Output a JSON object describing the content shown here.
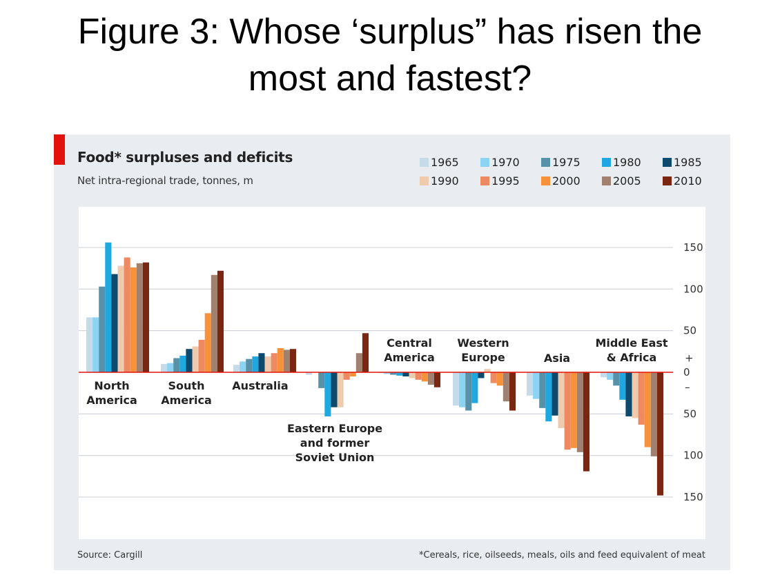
{
  "slide": {
    "title_line1": "Figure 3: Whose ‘surplus” has risen the",
    "title_line2": "most and fastest?"
  },
  "chart_data": {
    "type": "bar",
    "title": "Food* surpluses and deficits",
    "subtitle": "Net intra-regional trade, tonnes, m",
    "source": "Source: Cargill",
    "footnote": "*Cereals, rice, oilseeds, meals, oils and feed equivalent of meat",
    "ylim": [
      -165,
      170
    ],
    "yticks": [
      {
        "v": 150,
        "label": "150"
      },
      {
        "v": 100,
        "label": "100"
      },
      {
        "v": 50,
        "label": "50"
      },
      {
        "v": 0,
        "label": "0"
      },
      {
        "v": -50,
        "label": "50"
      },
      {
        "v": -100,
        "label": "100"
      },
      {
        "v": -150,
        "label": "150"
      }
    ],
    "sign_labels": {
      "plus": "+",
      "minus": "–"
    },
    "series_names": [
      "1965",
      "1970",
      "1975",
      "1980",
      "1985",
      "1990",
      "1995",
      "2000",
      "2005",
      "2010"
    ],
    "series_colors": [
      "#c6dbea",
      "#8cd3f4",
      "#5892a9",
      "#1fa8e0",
      "#0c4a6e",
      "#efcbae",
      "#ee8a62",
      "#f7923a",
      "#a0806f",
      "#7b2611"
    ],
    "categories": [
      {
        "name": "North America",
        "lines": [
          "North",
          "America"
        ],
        "values": [
          66,
          66,
          103,
          156,
          118,
          128,
          138,
          126,
          131,
          132
        ]
      },
      {
        "name": "South America",
        "lines": [
          "South",
          "America"
        ],
        "values": [
          10,
          11,
          17,
          20,
          28,
          31,
          39,
          71,
          117,
          122
        ]
      },
      {
        "name": "Australia",
        "lines": [
          "Australia"
        ],
        "values": [
          9,
          13,
          16,
          19,
          23,
          19,
          23,
          29,
          27,
          28
        ]
      },
      {
        "name": "Eastern Europe and former Soviet Union",
        "lines": [
          "Eastern Europe",
          "and former",
          "Soviet Union"
        ],
        "values": [
          -3,
          0,
          -19,
          -53,
          -42,
          -42,
          -9,
          -5,
          23,
          47
        ]
      },
      {
        "name": "Central America",
        "lines": [
          "Central",
          "America"
        ],
        "values": [
          -1,
          -2,
          -3,
          -4,
          -5,
          -7,
          -9,
          -11,
          -15,
          -18
        ]
      },
      {
        "name": "Western Europe",
        "lines": [
          "Western",
          "Europe"
        ],
        "values": [
          -40,
          -42,
          -46,
          -37,
          -7,
          4,
          -13,
          -16,
          -35,
          -46
        ]
      },
      {
        "name": "Asia",
        "lines": [
          "Asia"
        ],
        "values": [
          -28,
          -32,
          -43,
          -59,
          -52,
          -67,
          -93,
          -91,
          -96,
          -119
        ]
      },
      {
        "name": "Middle East & Africa",
        "lines": [
          "Middle East",
          "& Africa"
        ],
        "values": [
          -6,
          -9,
          -16,
          -33,
          -53,
          -55,
          -63,
          -90,
          -101,
          -148
        ]
      }
    ]
  }
}
